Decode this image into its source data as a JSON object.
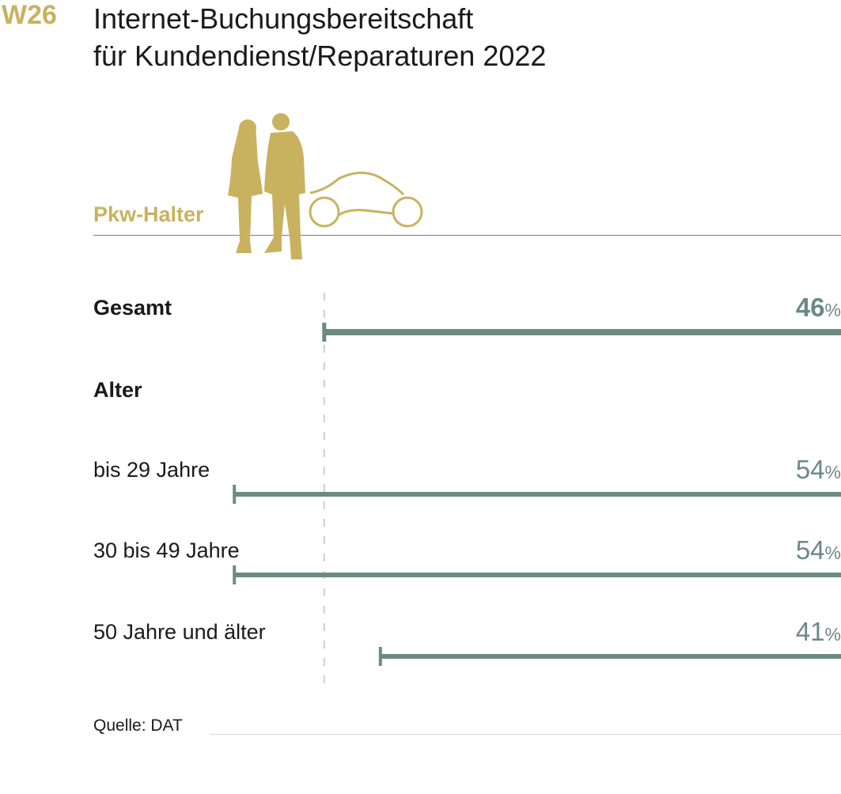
{
  "header": {
    "tag": "W26",
    "title_line1": "Internet-Buchungsbereitschaft",
    "title_line2": "für Kundendienst/Reparaturen 2022"
  },
  "subject_label": "Pkw-Halter",
  "icon": "people-with-car-icon",
  "source": "Quelle: DAT",
  "colors": {
    "accent": "#c9b25f",
    "bar": "#6b8a84",
    "text": "#1a1a1a",
    "dashed_reference": "#cfcfcf"
  },
  "chart_data": {
    "type": "bar",
    "orientation": "horizontal",
    "reference_value": 46,
    "unit": "%",
    "sections": [
      {
        "heading": "",
        "rows": [
          {
            "label": "Gesamt",
            "value": 46,
            "bold": true
          }
        ]
      },
      {
        "heading": "Alter",
        "rows": [
          {
            "label": "bis 29 Jahre",
            "value": 54,
            "bold": false
          },
          {
            "label": "30 bis 49 Jahre",
            "value": 54,
            "bold": false
          },
          {
            "label": "50 Jahre und älter",
            "value": 41,
            "bold": false
          }
        ]
      }
    ]
  }
}
